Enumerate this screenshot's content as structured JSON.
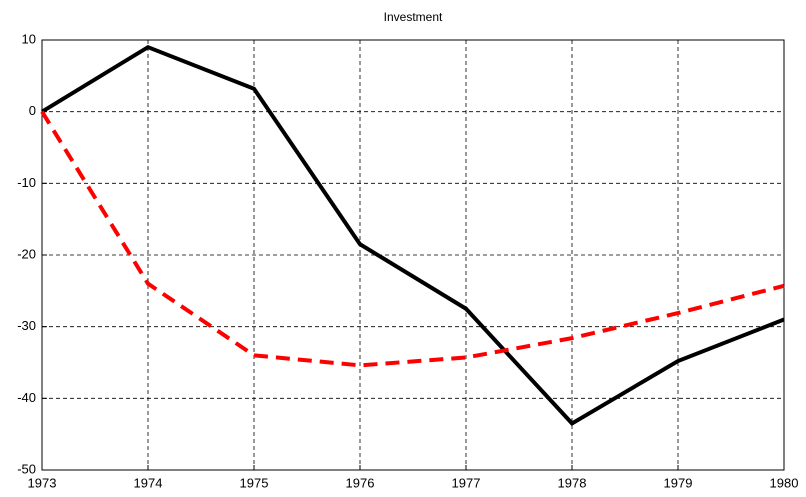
{
  "chart_data": {
    "type": "line",
    "title": "Investment",
    "x": [
      1973,
      1974,
      1975,
      1976,
      1977,
      1978,
      1979,
      1980
    ],
    "series": [
      {
        "color": "#000000",
        "dash": "solid",
        "values": [
          0,
          9,
          3.2,
          -18.5,
          -27.5,
          -43.5,
          -34.8,
          -29
        ]
      },
      {
        "color": "#ff0000",
        "dash": "dashed",
        "values": [
          0,
          -24,
          -34,
          -35.4,
          -34.3,
          -31.6,
          -28.1,
          -24.3
        ]
      }
    ],
    "xlim": [
      1973,
      1980
    ],
    "xticks": [
      1973,
      1974,
      1975,
      1976,
      1977,
      1978,
      1979,
      1980
    ],
    "ylim": [
      -50,
      10
    ],
    "yticks": [
      -50,
      -40,
      -30,
      -20,
      -10,
      0,
      10
    ],
    "grid": true
  }
}
